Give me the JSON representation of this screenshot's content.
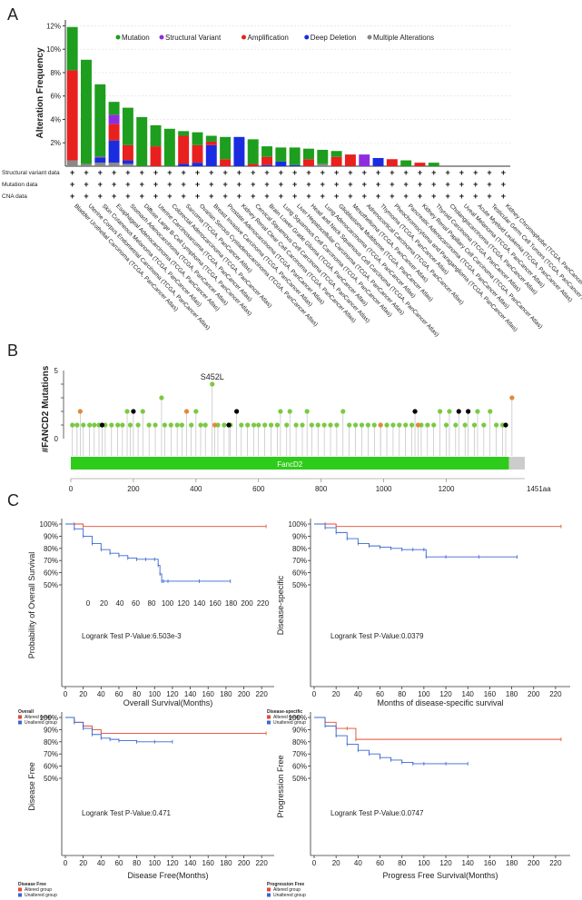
{
  "panels": {
    "A": "A",
    "B": "B",
    "C": "C"
  },
  "chart_data": [
    {
      "type": "bar",
      "ylabel": "Alteration Frequency",
      "ylim": [
        0,
        12.5
      ],
      "yticks": [
        "2%",
        "4%",
        "6%",
        "8%",
        "10%",
        "12%"
      ],
      "legend": [
        {
          "name": "Mutation",
          "color": "#1e9e1e"
        },
        {
          "name": "Structural Variant",
          "color": "#8e2de0"
        },
        {
          "name": "Amplification",
          "color": "#e8201e"
        },
        {
          "name": "Deep Deletion",
          "color": "#1a2ce0"
        },
        {
          "name": "Multiple Alterations",
          "color": "#888888"
        }
      ],
      "row_labels": [
        "Structural variant data",
        "Mutation data",
        "CNA data"
      ],
      "row_symbol": "+",
      "categories": [
        "Bladder Urothelial Carcinoma (TCGA, PanCancer Atlas)",
        "Uterine Corpus Endometrial Carcinoma (TCGA, PanCancer Atlas)",
        "Skin Cutaneous Melanoma (TCGA, PanCancer Atlas)",
        "Esophageal Adenocarcinoma (TCGA, PanCancer Atlas)",
        "Stomach Adenocarcinoma (TCGA, PanCancer Atlas)",
        "Diffuse Large B-Cell Lymphoma (TCGA, PanCancer Atlas)",
        "Uterine Carcinosarcoma (TCGA, PanCancer Atlas)",
        "Colorectal Adenocarcinoma (TCGA, PanCancer Atlas)",
        "Sarcoma (TCGA, PanCancer Atlas)",
        "Ovarian Serous Cystadenocarcinoma (TCGA, PanCancer Atlas)",
        "Breast Invasive Carcinoma (TCGA, PanCancer Atlas)",
        "Prostate Adenocarcinoma (TCGA, PanCancer Atlas)",
        "Kidney Renal Clear Cell Carcinoma (TCGA, PanCancer Atlas)",
        "Cervical Squamous Cell Carcinoma (TCGA, PanCancer Atlas)",
        "Brain Lower Grade Glioma (TCGA, PanCancer Atlas)",
        "Lung Squamous Cell Carcinoma (TCGA, PanCancer Atlas)",
        "Liver Hepatocellular Carcinoma (TCGA, PanCancer Atlas)",
        "Head and Neck Squamous Cell Carcinoma (TCGA, PanCancer Atlas)",
        "Lung Adenocarcinoma (TCGA, PanCancer Atlas)",
        "Glioblastoma Multiforme (TCGA, PanCancer Atlas)",
        "Mesothelioma (TCGA, PanCancer Atlas)",
        "Adrenocortical Carcinoma (TCGA, PanCancer Atlas)",
        "Thymoma (TCGA, PanCancer Atlas)",
        "Pheochromocytoma and Paraganglioma (TCGA, PanCancer Atlas)",
        "Pancreatic Adenocarcinoma (TCGA, PanCancer Atlas)",
        "Kidney Renal Papillary Cell Carcinoma (TCGA, PanCancer Atlas)",
        "Thyroid Carcinoma (TCGA, PanCancer Atlas)",
        "Cholangiocarcinoma (TCGA, PanCancer Atlas)",
        "Uveal Melanoma (TCGA, PanCancer Atlas)",
        "Acute Myeloid Leukemia (TCGA, PanCancer Atlas)",
        "Testicular Germ Cell Tumors (TCGA, PanCancer Atlas)",
        "Kidney Chromophobe (TCGA, PanCancer Atlas)"
      ],
      "series": [
        {
          "name": "Multiple Alterations",
          "color": "#888888",
          "values": [
            0.5,
            0.2,
            0.3,
            0.3,
            0.2,
            0,
            0,
            0,
            0,
            0,
            0,
            0,
            0,
            0,
            0,
            0,
            0,
            0,
            0.2,
            0,
            0,
            0,
            0,
            0,
            0,
            0,
            0,
            0,
            0,
            0,
            0,
            0
          ]
        },
        {
          "name": "Deep Deletion",
          "color": "#1a2ce0",
          "values": [
            0,
            0,
            0.4,
            1.9,
            0.3,
            0,
            0,
            0,
            0.2,
            0.3,
            1.8,
            0,
            2.5,
            0,
            0.1,
            0.4,
            0.1,
            0,
            0,
            0,
            0,
            0,
            0.7,
            0,
            0,
            0,
            0,
            0,
            0,
            0,
            0,
            0
          ]
        },
        {
          "name": "Amplification",
          "color": "#e8201e",
          "values": [
            7.7,
            0,
            0,
            1.4,
            1.3,
            0,
            1.7,
            0,
            2.4,
            1.5,
            0.3,
            0.6,
            0,
            0.2,
            0.7,
            0,
            0,
            0.6,
            0,
            0.8,
            1.0,
            0,
            0,
            0.6,
            0,
            0.3,
            0,
            0,
            0,
            0,
            0,
            0
          ]
        },
        {
          "name": "Structural Variant",
          "color": "#8e2de0",
          "values": [
            0,
            0,
            0.1,
            0.8,
            0,
            0,
            0,
            0,
            0,
            0,
            0,
            0,
            0,
            0,
            0,
            0,
            0,
            0,
            0,
            0,
            0,
            1.0,
            0,
            0,
            0,
            0,
            0,
            0,
            0,
            0,
            0,
            0
          ]
        },
        {
          "name": "Mutation",
          "color": "#1e9e1e",
          "values": [
            3.7,
            8.9,
            6.2,
            1.1,
            3.2,
            4.2,
            1.8,
            3.2,
            0.4,
            1.1,
            0.5,
            1.9,
            0,
            2.1,
            0.9,
            1.2,
            1.5,
            0.9,
            1.2,
            0.5,
            0,
            0,
            0,
            0,
            0.5,
            0,
            0.3,
            0,
            0,
            0,
            0,
            0
          ]
        }
      ]
    },
    {
      "type": "lollipop",
      "ylabel": "#FANCD2 Mutations",
      "ylim": [
        0,
        5
      ],
      "yticks": [
        "0",
        "5"
      ],
      "xlim": [
        0,
        1451
      ],
      "xticks": [
        "0",
        "200",
        "400",
        "600",
        "800",
        "1000",
        "1200"
      ],
      "xmax_label": "1451aa",
      "domain": {
        "name": "FancD2",
        "start": 0,
        "end": 1400,
        "color": "#2ecc1a"
      },
      "annotation": "S452L",
      "points": [
        {
          "x": 452,
          "y": 4,
          "color": "#7ac943"
        },
        {
          "x": 290,
          "y": 3,
          "color": "#7ac943"
        },
        {
          "x": 1410,
          "y": 3,
          "color": "#e08a3c"
        },
        {
          "x": 30,
          "y": 2,
          "color": "#e08a3c"
        },
        {
          "x": 180,
          "y": 2,
          "color": "#7ac943"
        },
        {
          "x": 200,
          "y": 2,
          "color": "#000000"
        },
        {
          "x": 230,
          "y": 2,
          "color": "#7ac943"
        },
        {
          "x": 370,
          "y": 2,
          "color": "#e08a3c"
        },
        {
          "x": 400,
          "y": 2,
          "color": "#7ac943"
        },
        {
          "x": 530,
          "y": 2,
          "color": "#000000"
        },
        {
          "x": 670,
          "y": 2,
          "color": "#7ac943"
        },
        {
          "x": 700,
          "y": 2,
          "color": "#7ac943"
        },
        {
          "x": 755,
          "y": 2,
          "color": "#7ac943"
        },
        {
          "x": 870,
          "y": 2,
          "color": "#7ac943"
        },
        {
          "x": 1100,
          "y": 2,
          "color": "#000000"
        },
        {
          "x": 1180,
          "y": 2,
          "color": "#7ac943"
        },
        {
          "x": 1210,
          "y": 2,
          "color": "#7ac943"
        },
        {
          "x": 1240,
          "y": 2,
          "color": "#000000"
        },
        {
          "x": 1270,
          "y": 2,
          "color": "#000000"
        },
        {
          "x": 1300,
          "y": 2,
          "color": "#7ac943"
        },
        {
          "x": 1340,
          "y": 2,
          "color": "#7ac943"
        }
      ],
      "single_points": {
        "green": [
          5,
          20,
          40,
          60,
          75,
          90,
          110,
          130,
          150,
          165,
          190,
          215,
          250,
          270,
          300,
          320,
          340,
          355,
          385,
          415,
          430,
          470,
          490,
          510,
          545,
          565,
          585,
          600,
          620,
          640,
          660,
          690,
          720,
          740,
          770,
          790,
          810,
          830,
          850,
          890,
          910,
          930,
          950,
          970,
          990,
          1010,
          1030,
          1050,
          1070,
          1090,
          1120,
          1140,
          1160,
          1200,
          1230,
          1260,
          1290,
          1320,
          1360,
          1380
        ],
        "black": [
          100,
          505,
          1390
        ],
        "orange": [
          460,
          990,
          1110
        ]
      }
    },
    {
      "type": "line",
      "subtype": "kaplan-meier",
      "ylabel": "Probability of Overall Survival",
      "xlabel": "Overall Survival(Months)",
      "yticks": [
        "50%",
        "60%",
        "70%",
        "80%",
        "90%",
        "100%"
      ],
      "xticks": [
        "0",
        "20",
        "40",
        "60",
        "80",
        "100",
        "120",
        "140",
        "160",
        "180",
        "200",
        "220"
      ],
      "inner_xticks": [
        "0",
        "20",
        "40",
        "60",
        "80",
        "100",
        "120",
        "140",
        "160",
        "180",
        "200",
        "220"
      ],
      "ylim": [
        0.5,
        1.0
      ],
      "xlim": [
        0,
        230
      ],
      "pvalue": "Logrank Test P-Value:6.503e-3",
      "legend_title": "Overall",
      "series": [
        {
          "name": "Altered group",
          "color": "#e34a33",
          "x": [
            0,
            10,
            20,
            225
          ],
          "y": [
            1.0,
            1.0,
            0.98,
            0.98
          ]
        },
        {
          "name": "Unaltered group",
          "color": "#3a67d0",
          "x": [
            0,
            10,
            20,
            30,
            40,
            50,
            60,
            70,
            80,
            90,
            100,
            104,
            106,
            108,
            110,
            115,
            150,
            185
          ],
          "y": [
            1.0,
            0.96,
            0.9,
            0.84,
            0.79,
            0.76,
            0.74,
            0.72,
            0.71,
            0.71,
            0.71,
            0.66,
            0.59,
            0.53,
            0.53,
            0.53,
            0.53,
            0.53
          ]
        }
      ]
    },
    {
      "type": "line",
      "subtype": "kaplan-meier",
      "ylabel": "Disease-specific",
      "xlabel": "Months of disease-specific survival",
      "yticks": [
        "50%",
        "60%",
        "70%",
        "80%",
        "90%",
        "100%"
      ],
      "xticks": [
        "0",
        "20",
        "40",
        "60",
        "80",
        "100",
        "120",
        "140",
        "160",
        "180",
        "200",
        "220"
      ],
      "ylim": [
        0.5,
        1.0
      ],
      "xlim": [
        0,
        230
      ],
      "pvalue": "Logrank Test P-Value:0.0379",
      "legend_title": "Disease-specific",
      "series": [
        {
          "name": "Altered group",
          "color": "#e34a33",
          "x": [
            0,
            10,
            20,
            225
          ],
          "y": [
            1.0,
            1.0,
            0.98,
            0.98
          ]
        },
        {
          "name": "Unaltered group",
          "color": "#3a67d0",
          "x": [
            0,
            10,
            20,
            30,
            40,
            50,
            60,
            70,
            80,
            90,
            100,
            102,
            120,
            150,
            185
          ],
          "y": [
            1.0,
            0.97,
            0.93,
            0.88,
            0.84,
            0.82,
            0.81,
            0.8,
            0.79,
            0.79,
            0.79,
            0.73,
            0.73,
            0.73,
            0.73
          ]
        }
      ]
    },
    {
      "type": "line",
      "subtype": "kaplan-meier",
      "ylabel": "Disease Free",
      "xlabel": "Disease Free(Months)",
      "yticks": [
        "50%",
        "60%",
        "70%",
        "80%",
        "90%",
        "100%"
      ],
      "xticks": [
        "0",
        "20",
        "40",
        "60",
        "80",
        "100",
        "120",
        "140",
        "160",
        "180",
        "200",
        "220"
      ],
      "ylim": [
        0.5,
        1.0
      ],
      "xlim": [
        0,
        230
      ],
      "pvalue": "Logrank Test P-Value:0.471",
      "legend_title": "Disease Free",
      "series": [
        {
          "name": "Altered group",
          "color": "#e34a33",
          "x": [
            0,
            10,
            20,
            30,
            40,
            225
          ],
          "y": [
            1.0,
            0.96,
            0.93,
            0.9,
            0.87,
            0.87
          ]
        },
        {
          "name": "Unaltered group",
          "color": "#3a67d0",
          "x": [
            0,
            10,
            20,
            30,
            40,
            50,
            60,
            80,
            100,
            120
          ],
          "y": [
            1.0,
            0.96,
            0.91,
            0.86,
            0.83,
            0.82,
            0.81,
            0.8,
            0.8,
            0.8
          ]
        }
      ]
    },
    {
      "type": "line",
      "subtype": "kaplan-meier",
      "ylabel": "Progression Free",
      "xlabel": "Progress Free Survival(Months)",
      "yticks": [
        "50%",
        "60%",
        "70%",
        "80%",
        "90%",
        "100%"
      ],
      "xticks": [
        "0",
        "20",
        "40",
        "60",
        "80",
        "100",
        "120",
        "140",
        "160",
        "180",
        "200",
        "220"
      ],
      "ylim": [
        0.5,
        1.0
      ],
      "xlim": [
        0,
        230
      ],
      "pvalue": "Logrank Test P-Value:0.0747",
      "legend_title": "Progression Free",
      "series": [
        {
          "name": "Altered group",
          "color": "#e34a33",
          "x": [
            0,
            10,
            20,
            30,
            38,
            225
          ],
          "y": [
            1.0,
            0.96,
            0.91,
            0.91,
            0.82,
            0.82
          ]
        },
        {
          "name": "Unaltered group",
          "color": "#3a67d0",
          "x": [
            0,
            10,
            20,
            30,
            40,
            50,
            60,
            70,
            80,
            90,
            100,
            120,
            140
          ],
          "y": [
            1.0,
            0.93,
            0.85,
            0.78,
            0.73,
            0.7,
            0.67,
            0.65,
            0.63,
            0.62,
            0.62,
            0.62,
            0.62
          ]
        }
      ]
    }
  ]
}
